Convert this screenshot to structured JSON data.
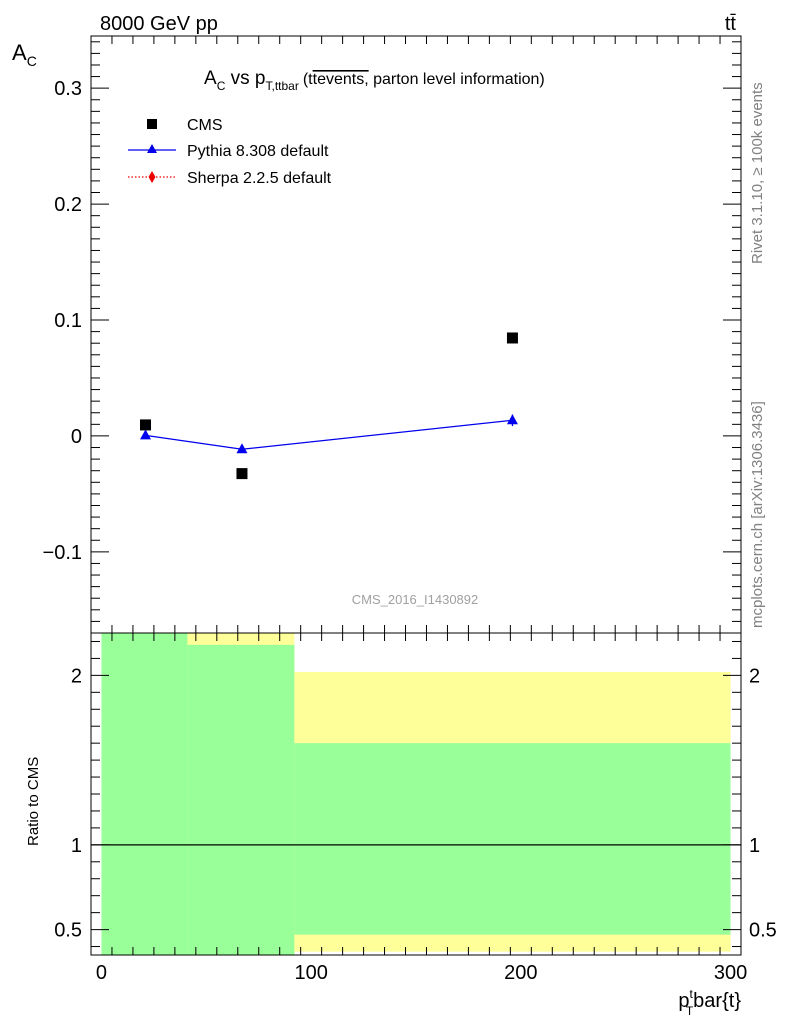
{
  "header": {
    "energy_label": "8000 GeV pp",
    "process_label": "tt̄",
    "side_label_upper": "Rivet 3.1.10, ≥ 100k events",
    "side_label_lower": "mcplots.cern.ch [arXiv:1306.3436]"
  },
  "chart_data": {
    "type": "scatter",
    "title_parts": {
      "a": "A",
      "a_sub": "C",
      "vs": " vs p",
      "p_sub": "T,ttbar",
      "paren_open": "(t",
      "overline": "tevents,",
      "paren_rest": " parton level information)"
    },
    "analysis_id": "CMS_2016_I1430892",
    "ylabel_main": {
      "text": "A",
      "sub": "C"
    },
    "ylabel_ratio": "Ratio to CMS",
    "xlabel": {
      "p": "p",
      "sup": "t",
      "sub": "T",
      "rest": "bar{t}"
    },
    "xlim": [
      -5,
      305
    ],
    "ylim_main": [
      -0.17,
      0.345
    ],
    "ylim_ratio": [
      0.35,
      2.25
    ],
    "x_ticks": [
      0,
      100,
      200,
      300
    ],
    "x_tick_labels": [
      "0",
      "100",
      "200",
      "300"
    ],
    "y_ticks_main": [
      -0.1,
      0,
      0.1,
      0.2,
      0.3
    ],
    "y_tick_labels_main": [
      "−0.1",
      "0",
      "0.1",
      "0.2",
      "0.3"
    ],
    "y_ticks_ratio": [
      0.5,
      1,
      2
    ],
    "y_tick_labels_ratio": [
      "0.5",
      "1",
      "2"
    ],
    "legend_position": "top-left",
    "series": [
      {
        "name": "CMS",
        "marker": "square",
        "color": "#000000",
        "x": [
          21,
          67,
          196
        ],
        "y": [
          0.0095,
          -0.0325,
          0.0845
        ]
      },
      {
        "name": "Pythia 8.308 default",
        "marker": "triangle",
        "color": "#0000ee",
        "line": "solid",
        "x": [
          21,
          67,
          196
        ],
        "y": [
          0.0005,
          -0.0115,
          0.0135
        ],
        "yerr": [
          0.002,
          0.003,
          0.005
        ]
      },
      {
        "name": "Sherpa 2.2.5 default",
        "marker": "diamond",
        "color": "#ee0000",
        "line": "dotted",
        "x": [],
        "y": []
      }
    ],
    "ratio_bands": [
      {
        "xlow": 0,
        "xhigh": 41,
        "yellow": [
          0.0,
          2.5
        ],
        "green": [
          0.0,
          2.5
        ]
      },
      {
        "xlow": 41,
        "xhigh": 92,
        "yellow": [
          0.0,
          2.5
        ],
        "green": [
          0.0,
          2.18
        ]
      },
      {
        "xlow": 92,
        "xhigh": 300,
        "yellow": [
          0.37,
          2.02
        ],
        "green": [
          0.47,
          1.6
        ]
      }
    ],
    "ratio_reference": 1,
    "colors": {
      "band_yellow": "#ffff99",
      "band_green": "#99ff99"
    }
  }
}
